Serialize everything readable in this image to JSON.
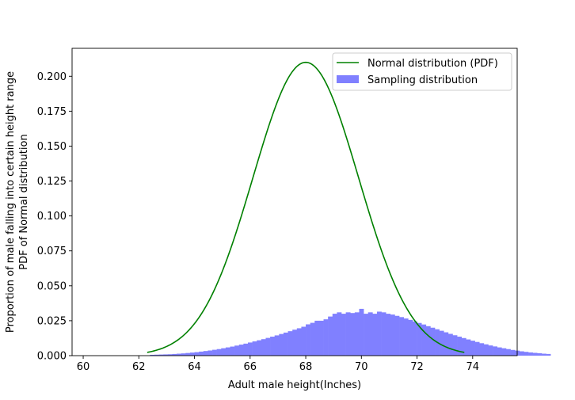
{
  "chart_data": {
    "type": "bar+line",
    "xlabel": "Adult male height(Inches)",
    "ylabel_lines": [
      "Proportion of male falling into certain height range",
      "PDF of Normal distribution"
    ],
    "xlim": [
      59.6,
      75.6
    ],
    "ylim": [
      0,
      0.22
    ],
    "x_ticks": [
      60,
      62,
      64,
      66,
      68,
      70,
      72,
      74
    ],
    "y_ticks": [
      0.0,
      0.025,
      0.05,
      0.075,
      0.1,
      0.125,
      0.15,
      0.175,
      0.2
    ],
    "y_tick_labels": [
      "0.000",
      "0.025",
      "0.050",
      "0.075",
      "0.100",
      "0.125",
      "0.150",
      "0.175",
      "0.200"
    ],
    "grid": false,
    "legend": {
      "placement": "top-right",
      "entries": [
        "Normal distribution (PDF)",
        "Sampling distribution"
      ]
    },
    "colors": {
      "pdf": "#008000",
      "hist": "#8080ff"
    },
    "pdf": {
      "name": "Normal distribution (PDF)",
      "mean": 68,
      "std": 1.9,
      "x_range": [
        62.3,
        73.7
      ]
    },
    "histogram": {
      "name": "Sampling distribution",
      "bin_start": 62.4,
      "bin_width": 0.16,
      "values": [
        0.0006,
        0.0007,
        0.0008,
        0.0009,
        0.001,
        0.0012,
        0.0014,
        0.0016,
        0.0019,
        0.0022,
        0.0025,
        0.0029,
        0.0033,
        0.0037,
        0.0042,
        0.0047,
        0.0053,
        0.0059,
        0.0065,
        0.0072,
        0.0079,
        0.0086,
        0.0094,
        0.0102,
        0.011,
        0.0118,
        0.0127,
        0.0136,
        0.0145,
        0.0155,
        0.0165,
        0.0175,
        0.0186,
        0.0196,
        0.0207,
        0.0224,
        0.0235,
        0.025,
        0.025,
        0.026,
        0.028,
        0.03,
        0.031,
        0.03,
        0.031,
        0.0305,
        0.031,
        0.0335,
        0.03,
        0.031,
        0.03,
        0.0315,
        0.031,
        0.03,
        0.0294,
        0.0285,
        0.0276,
        0.0266,
        0.0256,
        0.0245,
        0.0234,
        0.0223,
        0.0211,
        0.02,
        0.0189,
        0.0178,
        0.0167,
        0.0156,
        0.0146,
        0.0136,
        0.0126,
        0.0116,
        0.0107,
        0.0098,
        0.0089,
        0.0081,
        0.0073,
        0.0066,
        0.0059,
        0.0053,
        0.0047,
        0.0041,
        0.0036,
        0.0031,
        0.0027,
        0.0023,
        0.002,
        0.0017,
        0.0014,
        0.0012
      ]
    }
  }
}
